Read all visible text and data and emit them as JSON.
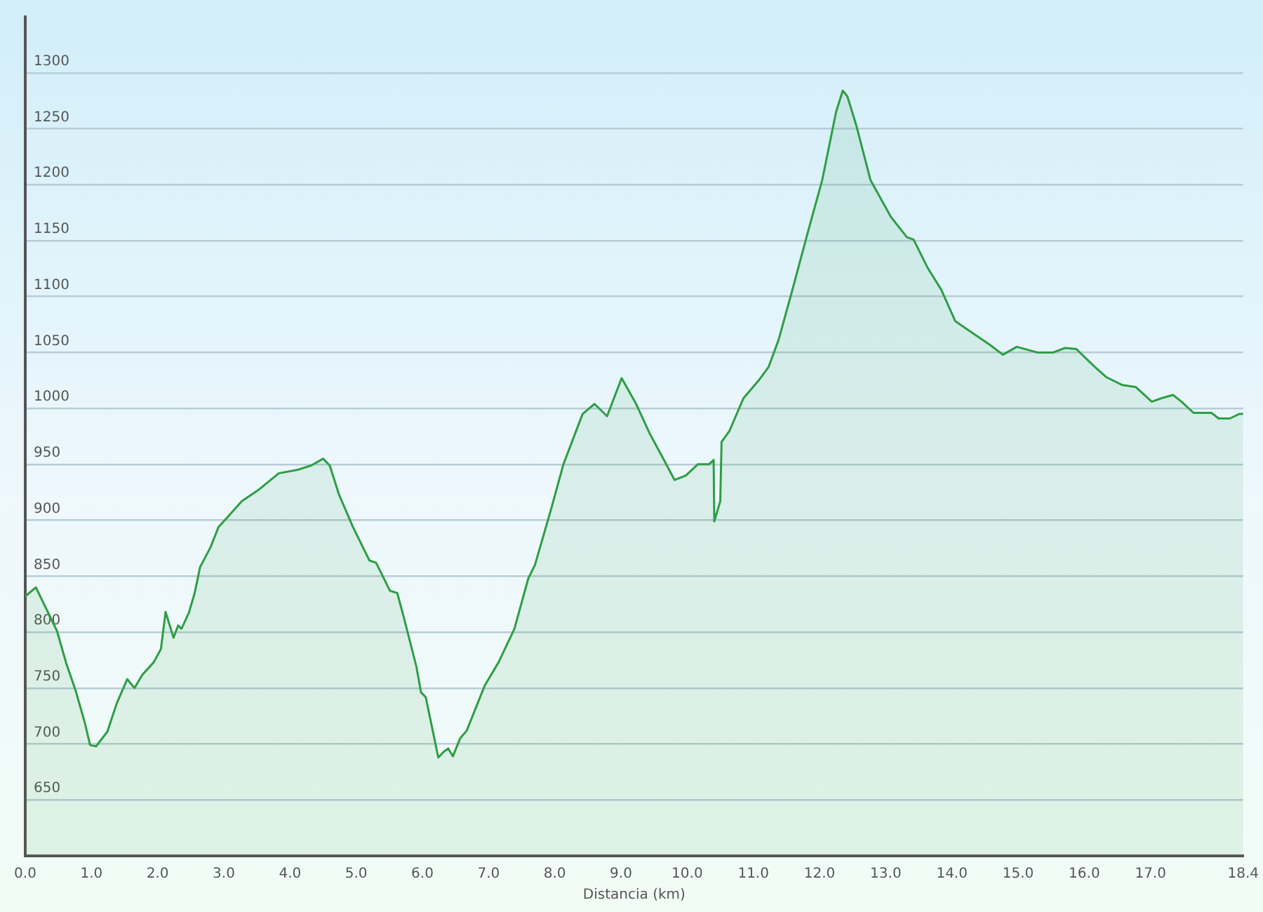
{
  "chart_data": {
    "type": "area",
    "xlabel": "Distancia (km)",
    "xlim": [
      0,
      18.4
    ],
    "ylim": [
      600,
      1350
    ],
    "xticks": [
      {
        "value": 0,
        "label": "0.0"
      },
      {
        "value": 1,
        "label": "1.0"
      },
      {
        "value": 2,
        "label": "2.0"
      },
      {
        "value": 3,
        "label": "3.0"
      },
      {
        "value": 4,
        "label": "4.0"
      },
      {
        "value": 5,
        "label": "5.0"
      },
      {
        "value": 6,
        "label": "6.0"
      },
      {
        "value": 7,
        "label": "7.0"
      },
      {
        "value": 8,
        "label": "8.0"
      },
      {
        "value": 9,
        "label": "9.0"
      },
      {
        "value": 10,
        "label": "10.0"
      },
      {
        "value": 11,
        "label": "11.0"
      },
      {
        "value": 12,
        "label": "12.0"
      },
      {
        "value": 13,
        "label": "13.0"
      },
      {
        "value": 14,
        "label": "14.0"
      },
      {
        "value": 15,
        "label": "15.0"
      },
      {
        "value": 16,
        "label": "16.0"
      },
      {
        "value": 17,
        "label": "17.0"
      },
      {
        "value": 18.4,
        "label": "18.4"
      }
    ],
    "yticks": [
      650,
      700,
      750,
      800,
      850,
      900,
      950,
      1000,
      1050,
      1100,
      1150,
      1200,
      1250,
      1300
    ],
    "grid": "y",
    "legend": false,
    "marker": "none",
    "line_style": "solid",
    "series": [
      {
        "color": "#2e9e44",
        "x": [
          0,
          0.16,
          0.3,
          0.48,
          0.62,
          0.76,
          0.9,
          0.98,
          1.07,
          1.24,
          1.38,
          1.54,
          1.65,
          1.77,
          1.94,
          2.05,
          2.12,
          2.24,
          2.31,
          2.36,
          2.47,
          2.56,
          2.64,
          2.8,
          2.92,
          3.06,
          3.27,
          3.52,
          3.83,
          4.11,
          4.32,
          4.5,
          4.6,
          4.74,
          4.95,
          5.2,
          5.3,
          5.51,
          5.62,
          5.72,
          5.91,
          5.98,
          6.05,
          6.24,
          6.32,
          6.39,
          6.46,
          6.57,
          6.67,
          6.94,
          7.15,
          7.39,
          7.6,
          7.7,
          7.94,
          8.13,
          8.42,
          8.6,
          8.79,
          9.01,
          9.22,
          9.43,
          9.63,
          9.81,
          9.98,
          10.16,
          10.33,
          10.4,
          10.41,
          10.5,
          10.52,
          10.64,
          10.85,
          11.08,
          11.23,
          11.38,
          11.59,
          11.83,
          12.04,
          12.25,
          12.35,
          12.42,
          12.56,
          12.77,
          13.08,
          13.32,
          13.42,
          13.63,
          13.84,
          14.05,
          14.32,
          14.57,
          14.77,
          14.98,
          15.29,
          15.53,
          15.71,
          15.88,
          16.16,
          16.33,
          16.57,
          16.78,
          17.02,
          17.16,
          17.34,
          17.47,
          17.65,
          17.92,
          18.03,
          18.2,
          18.34,
          18.4
        ],
        "values": [
          832,
          840,
          823,
          801,
          772,
          748,
          719,
          699,
          698,
          711,
          736,
          758,
          750,
          762,
          773,
          785,
          818,
          795,
          806,
          803,
          817,
          835,
          858,
          876,
          894,
          903,
          917,
          927,
          942,
          945,
          949,
          955,
          949,
          923,
          894,
          864,
          862,
          837,
          835,
          813,
          769,
          746,
          742,
          688,
          693,
          696,
          689,
          705,
          712,
          752,
          773,
          803,
          848,
          860,
          909,
          950,
          995,
          1004,
          993,
          1027,
          1005,
          978,
          956,
          936,
          940,
          950,
          950,
          954,
          899,
          917,
          970,
          980,
          1009,
          1025,
          1037,
          1061,
          1106,
          1159,
          1204,
          1265,
          1284,
          1279,
          1252,
          1204,
          1171,
          1153,
          1151,
          1126,
          1106,
          1078,
          1067,
          1057,
          1048,
          1055,
          1050,
          1050,
          1054,
          1053,
          1037,
          1028,
          1021,
          1019,
          1006,
          1009,
          1012,
          1006,
          996,
          996,
          991,
          991,
          995,
          995
        ]
      }
    ]
  }
}
